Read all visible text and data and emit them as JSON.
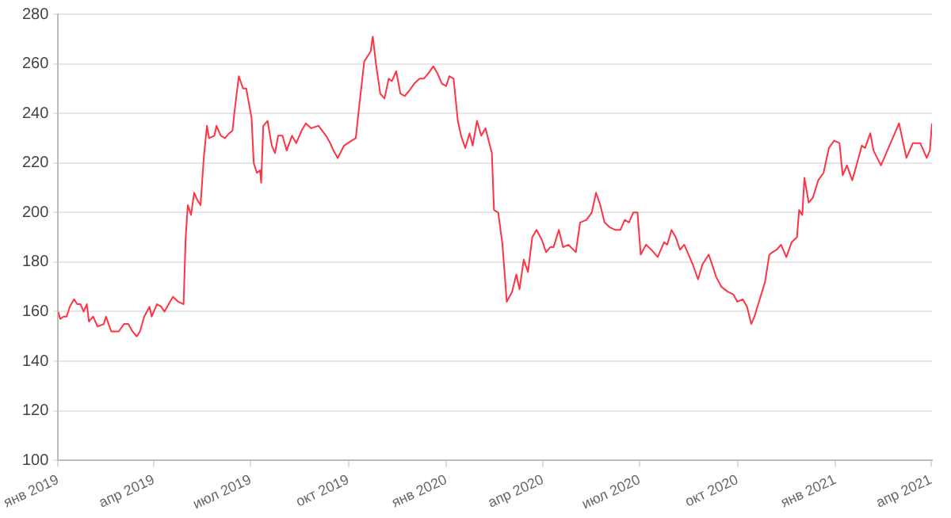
{
  "chart_data": {
    "type": "line",
    "color": "#ff3344",
    "grid": "y",
    "x": [
      "2019-01-01",
      "2019-01-03",
      "2019-01-06",
      "2019-01-09",
      "2019-01-12",
      "2019-01-16",
      "2019-01-19",
      "2019-01-22",
      "2019-01-25",
      "2019-01-28",
      "2019-01-30",
      "2019-02-03",
      "2019-02-07",
      "2019-02-13",
      "2019-02-15",
      "2019-02-20",
      "2019-02-27",
      "2019-03-04",
      "2019-03-08",
      "2019-03-12",
      "2019-03-16",
      "2019-03-19",
      "2019-03-23",
      "2019-03-28",
      "2019-03-30",
      "2019-04-04",
      "2019-04-08",
      "2019-04-11",
      "2019-04-15",
      "2019-04-19",
      "2019-04-24",
      "2019-04-29",
      "2019-05-01",
      "2019-05-03",
      "2019-05-06",
      "2019-05-09",
      "2019-05-12",
      "2019-05-15",
      "2019-05-18",
      "2019-05-21",
      "2019-05-23",
      "2019-05-28",
      "2019-05-30",
      "2019-06-03",
      "2019-06-07",
      "2019-06-11",
      "2019-06-14",
      "2019-06-16",
      "2019-06-20",
      "2019-06-24",
      "2019-06-27",
      "2019-07-02",
      "2019-07-04",
      "2019-07-07",
      "2019-07-10",
      "2019-07-11",
      "2019-07-13",
      "2019-07-17",
      "2019-07-21",
      "2019-07-24",
      "2019-07-27",
      "2019-07-31",
      "2019-08-04",
      "2019-08-09",
      "2019-08-13",
      "2019-08-18",
      "2019-08-22",
      "2019-08-27",
      "2019-09-03",
      "2019-09-10",
      "2019-09-14",
      "2019-09-17",
      "2019-09-21",
      "2019-09-27",
      "2019-10-04",
      "2019-10-08",
      "2019-10-12",
      "2019-10-16",
      "2019-10-19",
      "2019-10-22",
      "2019-10-24",
      "2019-10-27",
      "2019-10-31",
      "2019-11-04",
      "2019-11-08",
      "2019-11-11",
      "2019-11-15",
      "2019-11-19",
      "2019-11-23",
      "2019-11-27",
      "2019-12-02",
      "2019-12-07",
      "2019-12-11",
      "2019-12-15",
      "2019-12-20",
      "2019-12-24",
      "2019-12-28",
      "2020-01-01",
      "2020-01-04",
      "2020-01-08",
      "2020-01-12",
      "2020-01-15",
      "2020-01-19",
      "2020-01-23",
      "2020-01-26",
      "2020-01-30",
      "2020-02-03",
      "2020-02-07",
      "2020-02-13",
      "2020-02-15",
      "2020-02-19",
      "2020-02-23",
      "2020-02-27",
      "2020-03-03",
      "2020-03-07",
      "2020-03-10",
      "2020-03-14",
      "2020-03-18",
      "2020-03-22",
      "2020-03-26",
      "2020-03-31",
      "2020-04-04",
      "2020-04-08",
      "2020-04-11",
      "2020-04-16",
      "2020-04-20",
      "2020-04-25",
      "2020-05-02",
      "2020-05-06",
      "2020-05-12",
      "2020-05-17",
      "2020-05-21",
      "2020-05-25",
      "2020-05-29",
      "2020-06-03",
      "2020-06-08",
      "2020-06-13",
      "2020-06-17",
      "2020-06-21",
      "2020-06-25",
      "2020-06-29",
      "2020-07-02",
      "2020-07-07",
      "2020-07-12",
      "2020-07-18",
      "2020-07-24",
      "2020-07-27",
      "2020-07-31",
      "2020-08-04",
      "2020-08-08",
      "2020-08-12",
      "2020-08-17",
      "2020-08-20",
      "2020-08-25",
      "2020-08-29",
      "2020-09-04",
      "2020-09-08",
      "2020-09-11",
      "2020-09-16",
      "2020-09-22",
      "2020-09-27",
      "2020-10-01",
      "2020-10-06",
      "2020-10-10",
      "2020-10-14",
      "2020-10-17",
      "2020-10-22",
      "2020-10-27",
      "2020-10-31",
      "2020-11-03",
      "2020-11-07",
      "2020-11-11",
      "2020-11-16",
      "2020-11-21",
      "2020-11-26",
      "2020-11-28",
      "2020-12-01",
      "2020-12-03",
      "2020-12-07",
      "2020-12-11",
      "2020-12-16",
      "2020-12-21",
      "2020-12-26",
      "2020-12-31",
      "2021-01-05",
      "2021-01-08",
      "2021-01-12",
      "2021-01-17",
      "2021-01-21",
      "2021-01-26",
      "2021-01-29",
      "2021-02-03",
      "2021-02-06",
      "2021-02-13",
      "2021-02-18",
      "2021-02-25",
      "2021-03-02",
      "2021-03-09",
      "2021-03-15",
      "2021-03-22",
      "2021-03-28",
      "2021-03-31",
      "2021-04-02"
    ],
    "values": [
      160,
      157,
      158,
      158,
      162,
      165,
      163,
      163,
      160,
      163,
      156,
      158,
      154,
      155,
      158,
      152,
      152,
      155,
      155,
      152,
      150,
      152,
      158,
      162,
      158,
      163,
      162,
      160,
      163,
      166,
      164,
      163,
      190,
      203,
      199,
      208,
      205,
      203,
      222,
      235,
      230,
      231,
      235,
      231,
      230,
      232,
      233,
      241,
      255,
      250,
      250,
      238,
      220,
      216,
      217,
      212,
      235,
      237,
      227,
      224,
      231,
      231,
      225,
      231,
      228,
      233,
      236,
      234,
      235,
      231,
      228,
      225,
      222,
      227,
      229,
      230,
      246,
      261,
      263,
      265,
      271,
      260,
      248,
      246,
      254,
      253,
      257,
      248,
      247,
      249,
      252,
      254,
      254,
      256,
      259,
      256,
      252,
      251,
      255,
      254,
      237,
      231,
      226,
      232,
      227,
      237,
      231,
      234,
      224,
      201,
      200,
      187,
      164,
      168,
      175,
      169,
      181,
      176,
      190,
      193,
      189,
      184,
      186,
      186,
      193,
      186,
      187,
      184,
      196,
      197,
      200,
      208,
      203,
      196,
      194,
      193,
      193,
      197,
      196,
      200,
      200,
      183,
      187,
      185,
      182,
      188,
      187,
      193,
      190,
      185,
      187,
      182,
      179,
      173,
      179,
      183,
      178,
      174,
      170,
      168,
      167,
      164,
      165,
      162,
      155,
      158,
      165,
      172,
      183,
      184,
      185,
      187,
      182,
      188,
      190,
      201,
      199,
      214,
      204,
      206,
      213,
      216,
      226,
      229,
      228,
      215,
      219,
      213,
      219,
      227,
      226,
      232,
      225,
      219,
      224,
      231,
      236,
      222,
      228,
      228,
      222,
      225,
      236
    ],
    "xlim": [
      "2019-01-01",
      "2021-04-02"
    ],
    "xticks": [
      {
        "value": "2019-01-01",
        "label": "янв 2019"
      },
      {
        "value": "2019-04-01",
        "label": "апр 2019"
      },
      {
        "value": "2019-07-01",
        "label": "июл 2019"
      },
      {
        "value": "2019-10-01",
        "label": "окт 2019"
      },
      {
        "value": "2020-01-01",
        "label": "янв 2020"
      },
      {
        "value": "2020-04-01",
        "label": "апр 2020"
      },
      {
        "value": "2020-07-01",
        "label": "июл 2020"
      },
      {
        "value": "2020-10-01",
        "label": "окт 2020"
      },
      {
        "value": "2021-01-01",
        "label": "янв 2021"
      },
      {
        "value": "2021-04-01",
        "label": "апр 2021"
      }
    ],
    "ylim": [
      100,
      280
    ],
    "yticks": [
      100,
      120,
      140,
      160,
      180,
      200,
      220,
      240,
      260,
      280
    ]
  }
}
